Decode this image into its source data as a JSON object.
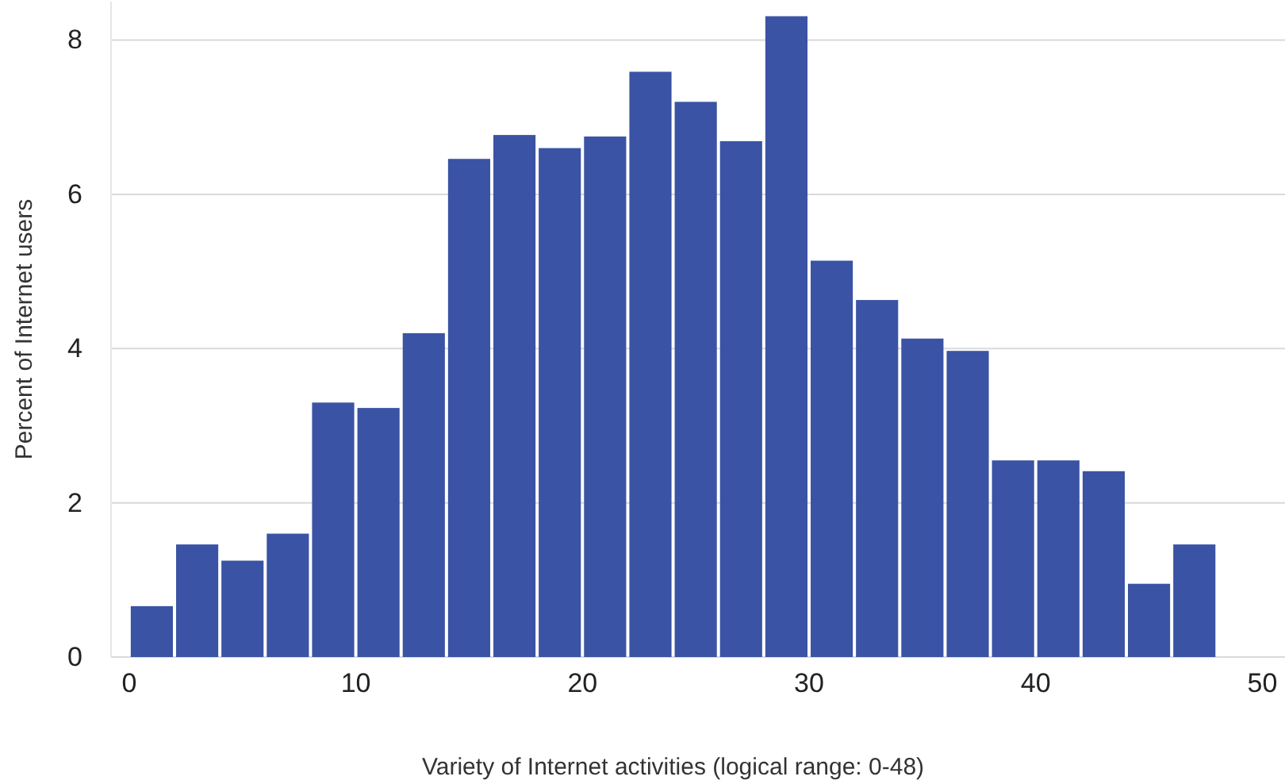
{
  "chart_data": {
    "type": "histogram",
    "xlabel": "Variety of Internet activities (logical range: 0-48)",
    "ylabel": "Percent of Internet users",
    "bins": [
      0,
      2,
      4,
      6,
      8,
      10,
      12,
      14,
      16,
      18,
      20,
      22,
      24,
      26,
      28,
      30,
      32,
      34,
      36,
      38,
      40,
      42,
      44,
      46,
      48
    ],
    "values": [
      0.66,
      1.46,
      1.25,
      1.6,
      3.3,
      3.23,
      4.2,
      6.46,
      6.77,
      6.6,
      6.75,
      7.59,
      7.2,
      6.69,
      8.31,
      5.14,
      4.63,
      4.13,
      3.97,
      2.55,
      2.55,
      2.41,
      0.95,
      1.46
    ],
    "color": "#3a53a4",
    "xlim": [
      -0.8,
      51
    ],
    "ylim": [
      0,
      8.5
    ],
    "xticks": [
      0,
      10,
      20,
      30,
      40,
      50
    ],
    "yticks": [
      0,
      2,
      4,
      6,
      8
    ],
    "grid": "y"
  }
}
